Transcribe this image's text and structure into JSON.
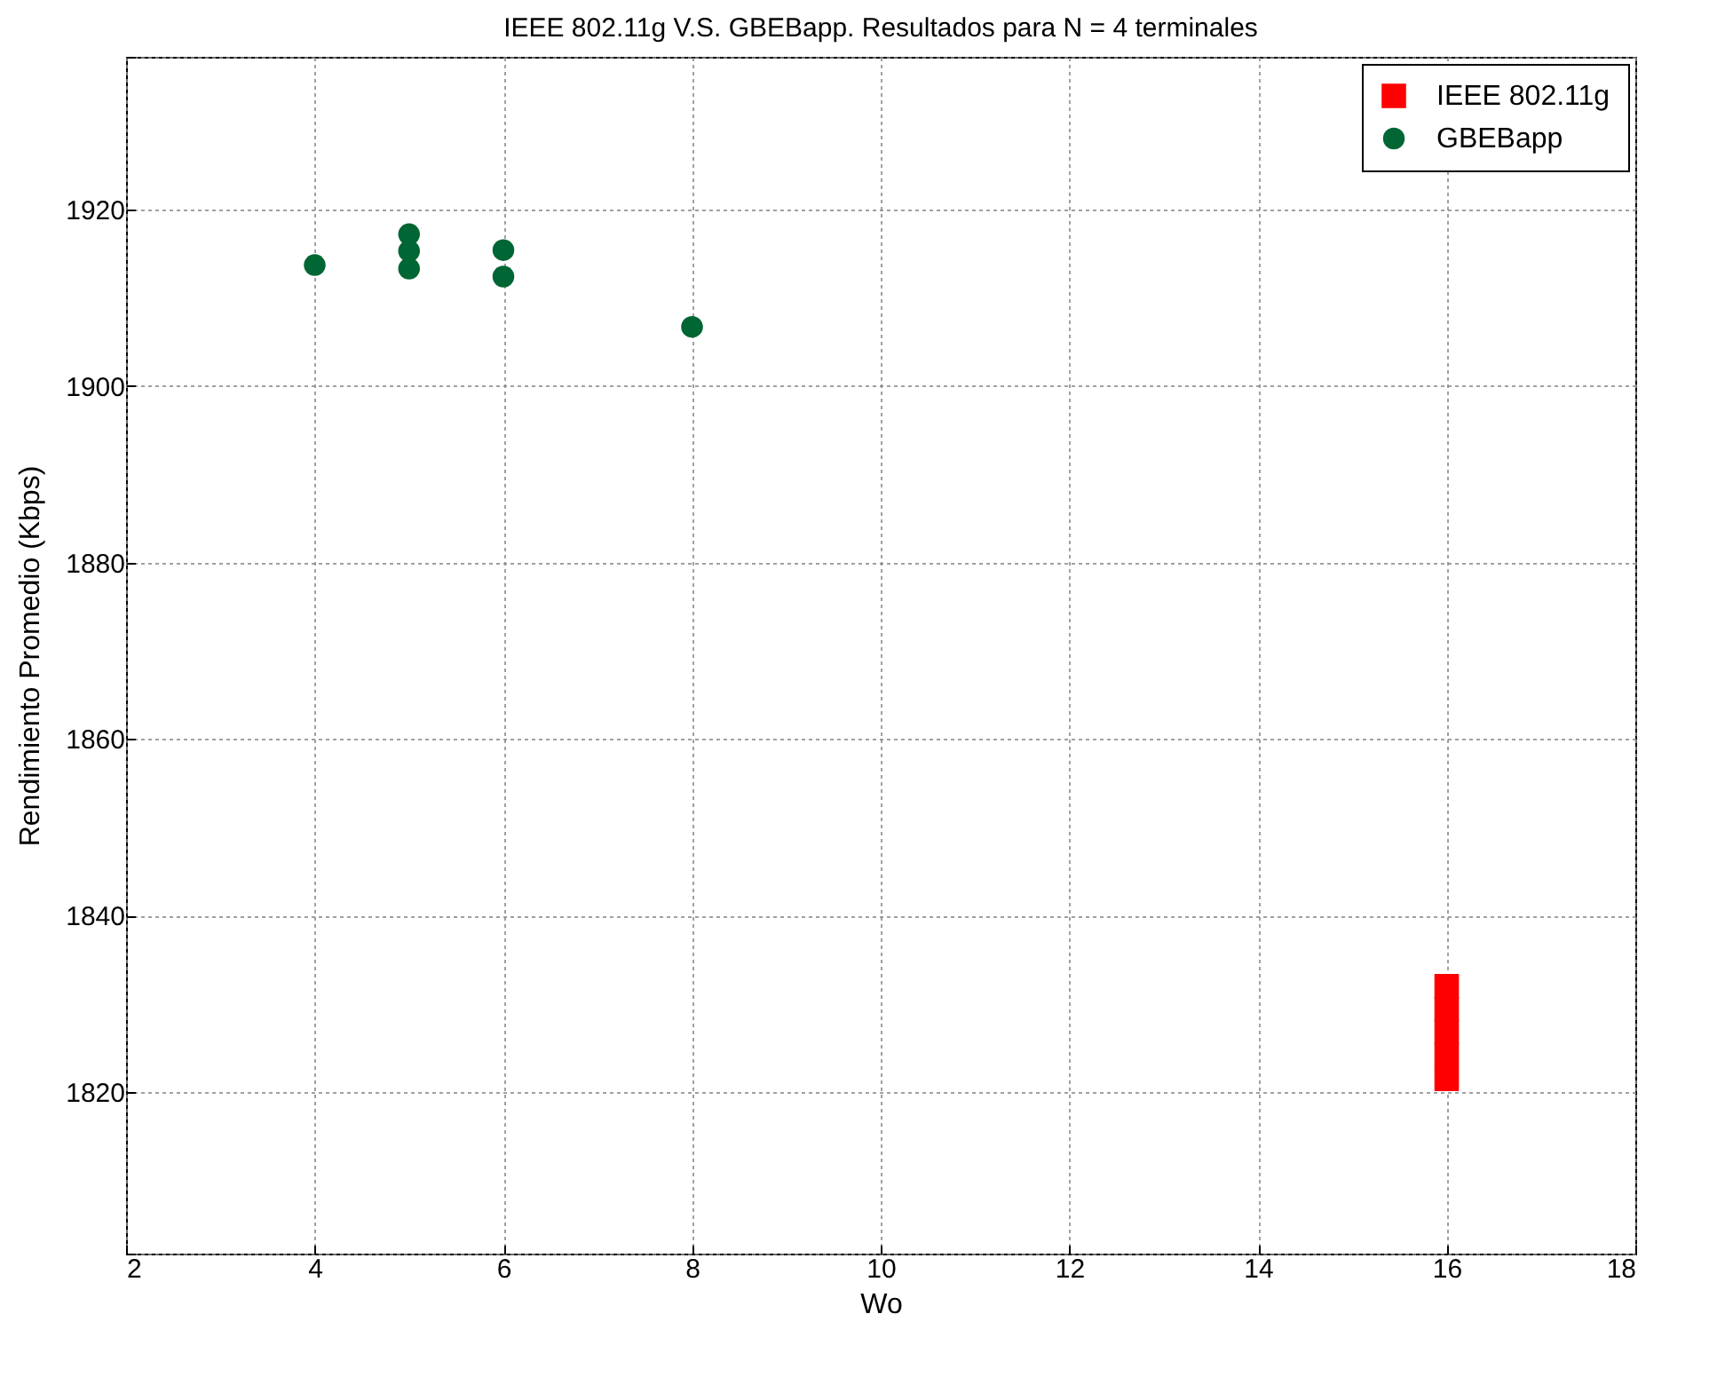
{
  "chart_data": {
    "type": "scatter",
    "title": "IEEE 802.11g V.S. GBEBapp. Resultados para N = 4 terminales",
    "xlabel": "Wo",
    "ylabel": "Rendimiento Promedio (Kbps)",
    "series": [
      {
        "name": "IEEE 802.11g",
        "color": "#ff0000",
        "marker": "square",
        "x": [
          16,
          16,
          16,
          16,
          16
        ],
        "values": [
          1821.5,
          1824.2,
          1826.8,
          1829.4,
          1832
        ]
      },
      {
        "name": "GBEBapp",
        "color": "#006633",
        "marker": "circle",
        "x": [
          4,
          5,
          5,
          5,
          6,
          6,
          8
        ],
        "values": [
          1913.7,
          1917.2,
          1915.3,
          1913.3,
          1915.4,
          1912.4,
          1906.7
        ]
      }
    ],
    "xlim": [
      2,
      18
    ],
    "xticks": [
      2,
      4,
      6,
      8,
      10,
      12,
      14,
      16,
      18
    ],
    "ylim": [
      1801.7,
      1937.3
    ],
    "yticks": [
      {
        "value": 1801.7,
        "label": null
      },
      1820,
      1840,
      1860,
      1880,
      1900,
      1920,
      {
        "value": 1937.3,
        "label": null
      }
    ],
    "grid": true,
    "legend": "top right"
  }
}
